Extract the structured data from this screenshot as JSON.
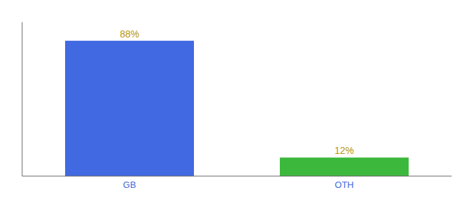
{
  "chart_data": {
    "type": "bar",
    "categories": [
      "GB",
      "OTH"
    ],
    "values": [
      88,
      12
    ],
    "value_labels": [
      "88%",
      "12%"
    ],
    "colors": [
      "#4169e1",
      "#3cb83c"
    ],
    "ylim": [
      0,
      100
    ],
    "data_labels": true,
    "tick_labels": "x",
    "grid": false
  }
}
